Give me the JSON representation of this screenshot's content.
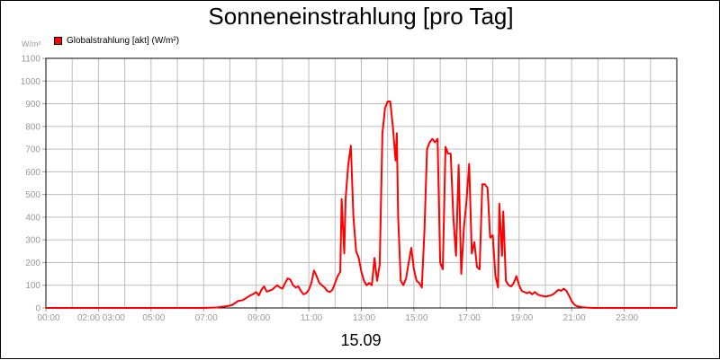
{
  "chart_data": {
    "type": "line",
    "title": "Sonneneinstrahlung [pro Tag]",
    "ylabel": "W/m²",
    "xlabel": "15.09",
    "ylim": [
      0,
      1100
    ],
    "xlim": [
      0,
      24
    ],
    "y_ticks": [
      "0",
      "100",
      "200",
      "300",
      "400",
      "500",
      "600",
      "700",
      "800",
      "900",
      "1000",
      "1100"
    ],
    "x_ticks": [
      "00:00",
      "02:00 03:00",
      "05:00",
      "07:00",
      "09:00",
      "11:00",
      "13:00",
      "15:00",
      "17:00",
      "19:00",
      "21:00",
      "23:00"
    ],
    "grid": true,
    "legend_position": "top-left",
    "series": [
      {
        "name": "Globalstrahlung [akt] (W/m²)",
        "color": "#ff0000",
        "points": [
          [
            0.0,
            0
          ],
          [
            6.0,
            0
          ],
          [
            6.5,
            2
          ],
          [
            6.9,
            8
          ],
          [
            7.1,
            14
          ],
          [
            7.3,
            30
          ],
          [
            7.5,
            35
          ],
          [
            7.7,
            50
          ],
          [
            7.9,
            62
          ],
          [
            8.0,
            70
          ],
          [
            8.1,
            55
          ],
          [
            8.2,
            80
          ],
          [
            8.3,
            95
          ],
          [
            8.4,
            72
          ],
          [
            8.6,
            80
          ],
          [
            8.8,
            100
          ],
          [
            8.9,
            90
          ],
          [
            9.0,
            85
          ],
          [
            9.1,
            110
          ],
          [
            9.2,
            130
          ],
          [
            9.3,
            125
          ],
          [
            9.4,
            100
          ],
          [
            9.5,
            90
          ],
          [
            9.6,
            95
          ],
          [
            9.7,
            75
          ],
          [
            9.8,
            60
          ],
          [
            9.9,
            65
          ],
          [
            10.0,
            80
          ],
          [
            10.1,
            110
          ],
          [
            10.2,
            165
          ],
          [
            10.3,
            140
          ],
          [
            10.4,
            110
          ],
          [
            10.5,
            100
          ],
          [
            10.6,
            90
          ],
          [
            10.7,
            75
          ],
          [
            10.8,
            70
          ],
          [
            10.9,
            80
          ],
          [
            11.0,
            110
          ],
          [
            11.1,
            140
          ],
          [
            11.2,
            160
          ],
          [
            11.25,
            480
          ],
          [
            11.35,
            240
          ],
          [
            11.4,
            480
          ],
          [
            11.5,
            630
          ],
          [
            11.6,
            715
          ],
          [
            11.7,
            400
          ],
          [
            11.8,
            250
          ],
          [
            11.9,
            220
          ],
          [
            12.0,
            160
          ],
          [
            12.1,
            120
          ],
          [
            12.2,
            100
          ],
          [
            12.3,
            110
          ],
          [
            12.4,
            100
          ],
          [
            12.5,
            220
          ],
          [
            12.6,
            120
          ],
          [
            12.7,
            190
          ],
          [
            12.8,
            770
          ],
          [
            12.9,
            880
          ],
          [
            13.0,
            910
          ],
          [
            13.1,
            910
          ],
          [
            13.2,
            800
          ],
          [
            13.3,
            650
          ],
          [
            13.35,
            770
          ],
          [
            13.4,
            400
          ],
          [
            13.5,
            120
          ],
          [
            13.6,
            100
          ],
          [
            13.7,
            130
          ],
          [
            13.8,
            200
          ],
          [
            13.9,
            265
          ],
          [
            14.0,
            170
          ],
          [
            14.1,
            120
          ],
          [
            14.2,
            110
          ],
          [
            14.3,
            90
          ],
          [
            14.4,
            340
          ],
          [
            14.5,
            700
          ],
          [
            14.6,
            730
          ],
          [
            14.7,
            745
          ],
          [
            14.8,
            730
          ],
          [
            14.9,
            745
          ],
          [
            15.0,
            200
          ],
          [
            15.1,
            170
          ],
          [
            15.2,
            710
          ],
          [
            15.3,
            680
          ],
          [
            15.4,
            680
          ],
          [
            15.5,
            400
          ],
          [
            15.6,
            230
          ],
          [
            15.7,
            630
          ],
          [
            15.8,
            150
          ],
          [
            15.9,
            350
          ],
          [
            16.0,
            470
          ],
          [
            16.1,
            635
          ],
          [
            16.2,
            240
          ],
          [
            16.3,
            290
          ],
          [
            16.4,
            180
          ],
          [
            16.5,
            170
          ],
          [
            16.6,
            545
          ],
          [
            16.7,
            545
          ],
          [
            16.8,
            530
          ],
          [
            16.9,
            310
          ],
          [
            17.0,
            320
          ],
          [
            17.1,
            140
          ],
          [
            17.2,
            90
          ],
          [
            17.25,
            460
          ],
          [
            17.35,
            230
          ],
          [
            17.4,
            425
          ],
          [
            17.5,
            120
          ],
          [
            17.6,
            100
          ],
          [
            17.7,
            95
          ],
          [
            17.8,
            110
          ],
          [
            17.9,
            140
          ],
          [
            18.0,
            100
          ],
          [
            18.1,
            75
          ],
          [
            18.2,
            70
          ],
          [
            18.3,
            65
          ],
          [
            18.4,
            70
          ],
          [
            18.5,
            60
          ],
          [
            18.6,
            70
          ],
          [
            18.7,
            60
          ],
          [
            18.8,
            55
          ],
          [
            19.0,
            50
          ],
          [
            19.2,
            55
          ],
          [
            19.3,
            60
          ],
          [
            19.4,
            70
          ],
          [
            19.5,
            80
          ],
          [
            19.6,
            75
          ],
          [
            19.7,
            85
          ],
          [
            19.8,
            75
          ],
          [
            19.9,
            55
          ],
          [
            20.0,
            30
          ],
          [
            20.1,
            15
          ],
          [
            20.2,
            8
          ],
          [
            20.4,
            3
          ],
          [
            20.8,
            0
          ],
          [
            24.0,
            0
          ]
        ]
      }
    ]
  }
}
